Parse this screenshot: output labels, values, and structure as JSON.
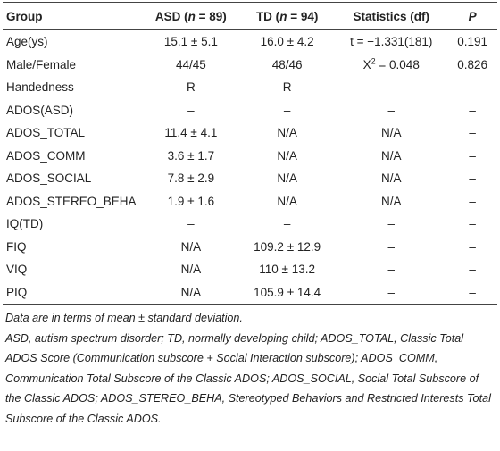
{
  "table": {
    "header": [
      [
        {
          "text": "Group"
        }
      ],
      [
        {
          "text": "ASD ("
        },
        {
          "text": "n",
          "italic": true
        },
        {
          "text": " = 89)"
        }
      ],
      [
        {
          "text": "TD ("
        },
        {
          "text": "n",
          "italic": true
        },
        {
          "text": " = 94)"
        }
      ],
      [
        {
          "text": "Statistics (df)"
        }
      ],
      [
        {
          "text": "P",
          "italic": true
        }
      ]
    ],
    "rows": [
      [
        [
          {
            "text": "Age(ys)"
          }
        ],
        [
          {
            "text": "15.1 ± 5.1"
          }
        ],
        [
          {
            "text": "16.0 ± 4.2"
          }
        ],
        [
          {
            "text": "t = −1.331(181)"
          }
        ],
        [
          {
            "text": "0.191"
          }
        ]
      ],
      [
        [
          {
            "text": "Male/Female"
          }
        ],
        [
          {
            "text": "44/45"
          }
        ],
        [
          {
            "text": "48/46"
          }
        ],
        [
          {
            "text": "X"
          },
          {
            "text": "2",
            "sup": true
          },
          {
            "text": " = 0.048"
          }
        ],
        [
          {
            "text": "0.826"
          }
        ]
      ],
      [
        [
          {
            "text": "Handedness"
          }
        ],
        [
          {
            "text": "R"
          }
        ],
        [
          {
            "text": "R"
          }
        ],
        [
          {
            "text": "–"
          }
        ],
        [
          {
            "text": "–"
          }
        ]
      ],
      [
        [
          {
            "text": "ADOS(ASD)"
          }
        ],
        [
          {
            "text": "–"
          }
        ],
        [
          {
            "text": "–"
          }
        ],
        [
          {
            "text": "–"
          }
        ],
        [
          {
            "text": "–"
          }
        ]
      ],
      [
        [
          {
            "text": "ADOS_TOTAL"
          }
        ],
        [
          {
            "text": "11.4 ± 4.1"
          }
        ],
        [
          {
            "text": "N/A"
          }
        ],
        [
          {
            "text": "N/A"
          }
        ],
        [
          {
            "text": "–"
          }
        ]
      ],
      [
        [
          {
            "text": "ADOS_COMM"
          }
        ],
        [
          {
            "text": "3.6 ± 1.7"
          }
        ],
        [
          {
            "text": "N/A"
          }
        ],
        [
          {
            "text": "N/A"
          }
        ],
        [
          {
            "text": "–"
          }
        ]
      ],
      [
        [
          {
            "text": "ADOS_SOCIAL"
          }
        ],
        [
          {
            "text": "7.8 ± 2.9"
          }
        ],
        [
          {
            "text": "N/A"
          }
        ],
        [
          {
            "text": "N/A"
          }
        ],
        [
          {
            "text": "–"
          }
        ]
      ],
      [
        [
          {
            "text": "ADOS_STEREO_BEHA"
          }
        ],
        [
          {
            "text": "1.9 ± 1.6"
          }
        ],
        [
          {
            "text": "N/A"
          }
        ],
        [
          {
            "text": "N/A"
          }
        ],
        [
          {
            "text": "–"
          }
        ]
      ],
      [
        [
          {
            "text": "IQ(TD)"
          }
        ],
        [
          {
            "text": "–"
          }
        ],
        [
          {
            "text": "–"
          }
        ],
        [
          {
            "text": "–"
          }
        ],
        [
          {
            "text": "–"
          }
        ]
      ],
      [
        [
          {
            "text": "FIQ"
          }
        ],
        [
          {
            "text": "N/A"
          }
        ],
        [
          {
            "text": "109.2 ± 12.9"
          }
        ],
        [
          {
            "text": "–"
          }
        ],
        [
          {
            "text": "–"
          }
        ]
      ],
      [
        [
          {
            "text": "VIQ"
          }
        ],
        [
          {
            "text": "N/A"
          }
        ],
        [
          {
            "text": "110 ± 13.2"
          }
        ],
        [
          {
            "text": "–"
          }
        ],
        [
          {
            "text": "–"
          }
        ]
      ],
      [
        [
          {
            "text": "PIQ"
          }
        ],
        [
          {
            "text": "N/A"
          }
        ],
        [
          {
            "text": "105.9 ± 14.4"
          }
        ],
        [
          {
            "text": "–"
          }
        ],
        [
          {
            "text": "–"
          }
        ]
      ]
    ],
    "notes": [
      "Data are in terms of mean ± standard deviation.",
      "ASD, autism spectrum disorder; TD, normally developing child; ADOS_TOTAL, Classic Total ADOS Score (Communication subscore + Social Interaction subscore); ADOS_COMM, Communication Total Subscore of the Classic ADOS; ADOS_SOCIAL, Social Total Subscore of the Classic ADOS; ADOS_STEREO_BEHA, Stereotyped Behaviors and Restricted Interests Total Subscore of the Classic ADOS."
    ]
  }
}
